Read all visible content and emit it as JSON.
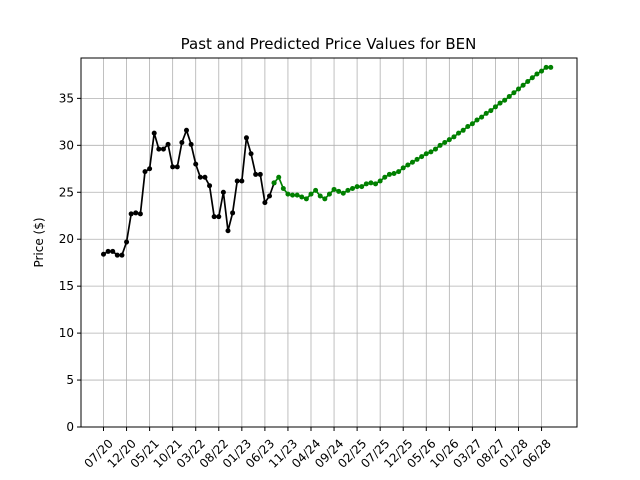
{
  "chart_data": {
    "type": "line",
    "title": "Past and Predicted Price Values for BEN",
    "xlabel": "",
    "ylabel": "Price ($)",
    "ylim": [
      0,
      39.3
    ],
    "yticks": [
      0,
      5,
      10,
      15,
      20,
      25,
      30,
      35
    ],
    "x_tick_labels": [
      "07/20",
      "12/20",
      "05/21",
      "10/21",
      "03/22",
      "08/22",
      "01/23",
      "06/23",
      "11/23",
      "04/24",
      "09/24",
      "02/25",
      "07/25",
      "12/25",
      "05/26",
      "10/26",
      "03/27",
      "08/27",
      "01/28",
      "06/28"
    ],
    "grid": true,
    "legend": "none",
    "series": [
      {
        "color": "#000000",
        "x_months": [
          0,
          1,
          2,
          3,
          4,
          5,
          6,
          7,
          8,
          9,
          10,
          11,
          12,
          13,
          14,
          15,
          16,
          17,
          18,
          19,
          20,
          21,
          22,
          23,
          24,
          25,
          26,
          27,
          28,
          29,
          30,
          31,
          32,
          33,
          34,
          35,
          36,
          37
        ],
        "values": [
          18.4,
          18.7,
          18.7,
          18.3,
          18.3,
          19.7,
          22.7,
          22.8,
          22.7,
          27.2,
          27.5,
          31.3,
          29.6,
          29.6,
          30.1,
          27.7,
          27.7,
          30.3,
          31.6,
          30.1,
          28.0,
          26.6,
          26.6,
          25.7,
          22.4,
          22.4,
          25.0,
          20.9,
          22.8,
          26.2,
          26.2,
          30.8,
          29.1,
          26.9,
          26.9,
          23.9,
          24.6,
          26.0
        ]
      },
      {
        "color": "#008000",
        "x_months": [
          37,
          38,
          39,
          40,
          41,
          42,
          43,
          44,
          45,
          46,
          47,
          48,
          49,
          50,
          51,
          52,
          53,
          54,
          55,
          56,
          57,
          58,
          59,
          60,
          61,
          62,
          63,
          64,
          65,
          66,
          67,
          68,
          69,
          70,
          71,
          72,
          73,
          74,
          75,
          76,
          77,
          78,
          79,
          80,
          81,
          82,
          83,
          84,
          85,
          86,
          87,
          88,
          89,
          90,
          91,
          92,
          93,
          94,
          95,
          96,
          97
        ],
        "values": [
          26.0,
          26.6,
          25.4,
          24.8,
          24.7,
          24.7,
          24.5,
          24.3,
          24.8,
          25.2,
          24.6,
          24.3,
          24.8,
          25.3,
          25.1,
          24.9,
          25.2,
          25.4,
          25.6,
          25.6,
          25.9,
          26.0,
          25.9,
          26.2,
          26.6,
          26.9,
          27.0,
          27.2,
          27.6,
          27.9,
          28.2,
          28.5,
          28.8,
          29.1,
          29.3,
          29.6,
          30.0,
          30.3,
          30.6,
          30.9,
          31.3,
          31.6,
          32.0,
          32.3,
          32.7,
          33.0,
          33.4,
          33.7,
          34.1,
          34.5,
          34.8,
          35.2,
          35.6,
          36.0,
          36.4,
          36.8,
          37.2,
          37.6,
          37.9,
          38.3,
          38.3
        ]
      }
    ]
  }
}
